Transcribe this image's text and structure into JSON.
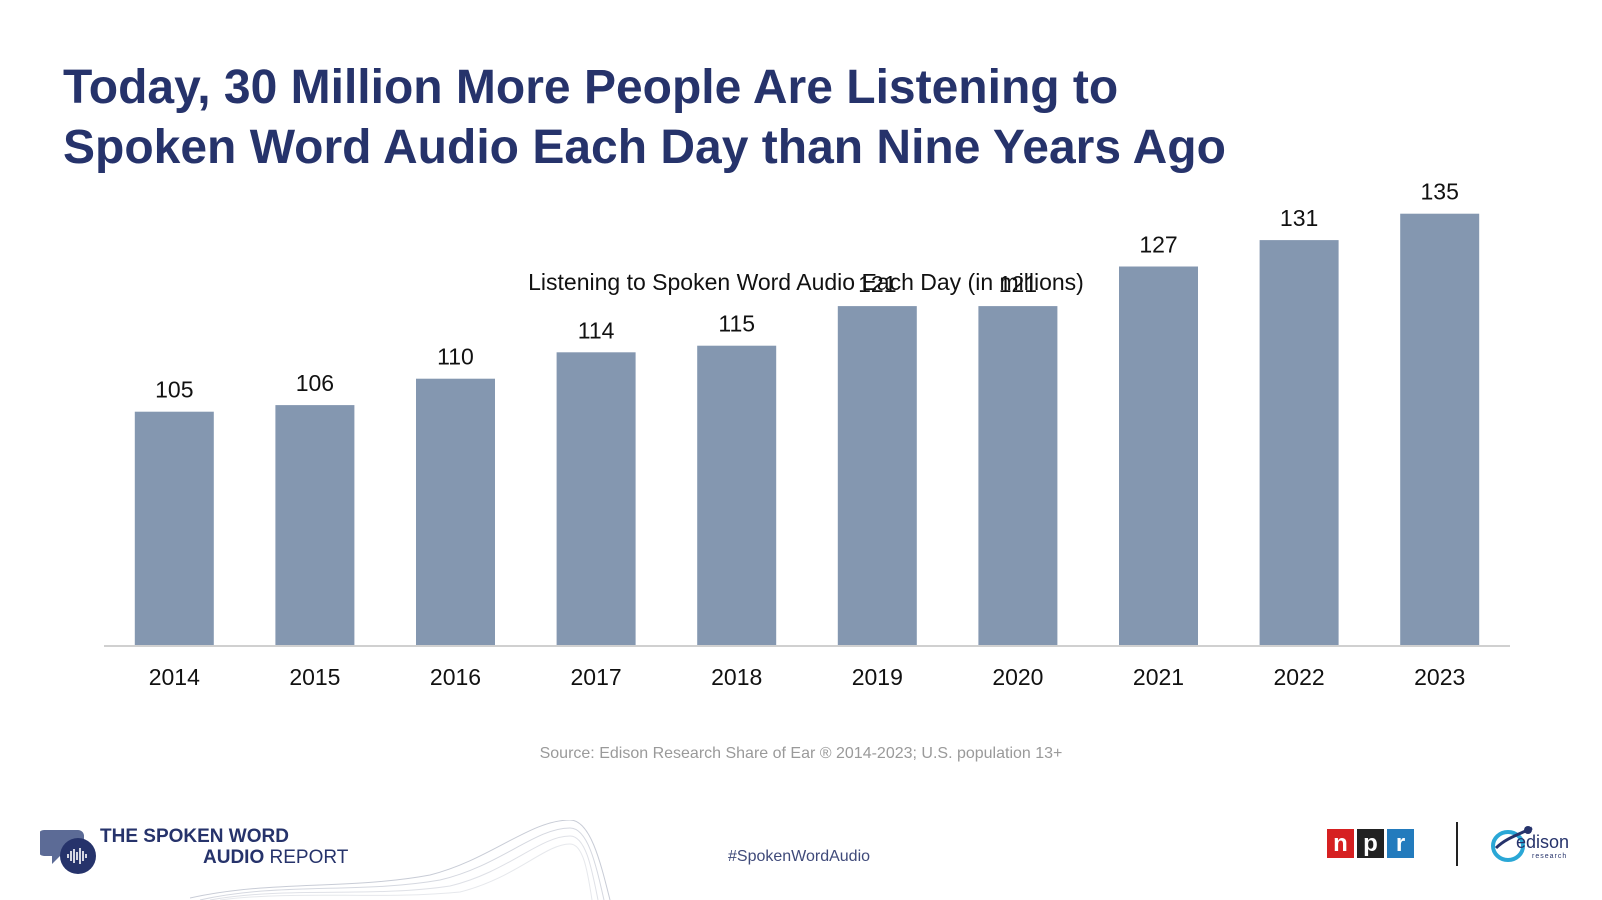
{
  "headline": {
    "line1": "Today, 30 Million More People Are Listening to",
    "line2": "Spoken Word Audio Each Day than Nine Years Ago"
  },
  "chart_data": {
    "type": "bar",
    "title": "Listening to Spoken Word Audio Each Day (in millions)",
    "categories": [
      "2014",
      "2015",
      "2016",
      "2017",
      "2018",
      "2019",
      "2020",
      "2021",
      "2022",
      "2023"
    ],
    "values": [
      105,
      106,
      110,
      114,
      115,
      121,
      121,
      127,
      131,
      135
    ],
    "xlabel": "",
    "ylabel": "",
    "grid": false,
    "bar_color": "#8497b0",
    "axis_color": "#d0d0d0"
  },
  "source": "Source: Edison Research Share of Ear ® 2014-2023; U.S. population 13+",
  "hashtag": "#SpokenWordAudio",
  "brand": {
    "line1": "THE SPOKEN WORD",
    "line2_bold": "AUDIO",
    "line2_light": "REPORT",
    "icon": "speech-bubble-waveform-icon"
  },
  "partners": {
    "npr_letters": [
      "n",
      "p",
      "r"
    ],
    "npr_colors": [
      "#d62021",
      "#222222",
      "#237bbd"
    ],
    "edison_text": "edison",
    "edison_sub": "research"
  }
}
